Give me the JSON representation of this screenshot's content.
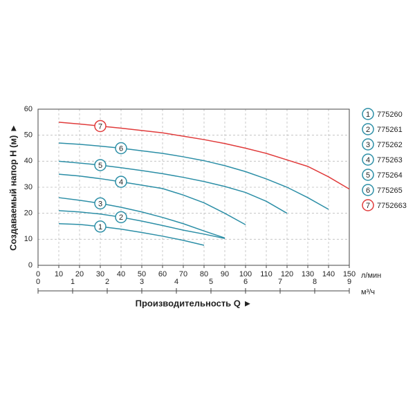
{
  "chart_data": {
    "type": "line",
    "y_label": "Создаваемый напор H (м) ►",
    "x_label": "Производительность Q ►",
    "x_unit": "л/мин",
    "x2_unit": "м³/ч",
    "xlim": [
      0,
      150
    ],
    "xticks": [
      0,
      10,
      20,
      30,
      40,
      50,
      60,
      70,
      80,
      90,
      100,
      110,
      120,
      130,
      140,
      150
    ],
    "x2lim": [
      0,
      9
    ],
    "x2ticks": [
      0,
      1,
      2,
      3,
      4,
      5,
      6,
      7,
      8,
      9
    ],
    "ylim": [
      0,
      60
    ],
    "yticks": [
      0,
      10,
      20,
      30,
      40,
      50,
      60
    ],
    "grid": true,
    "series": [
      {
        "name": "775260",
        "label": "1",
        "color": "#2b8ea6",
        "x": [
          10,
          20,
          30,
          40,
          50,
          60,
          70,
          80
        ],
        "values": [
          16,
          15.7,
          14.9,
          13.9,
          12.6,
          11.2,
          9.6,
          7.7
        ]
      },
      {
        "name": "775261",
        "label": "2",
        "color": "#2b8ea6",
        "x": [
          10,
          20,
          30,
          40,
          50,
          60,
          70,
          80,
          90
        ],
        "values": [
          21,
          20.5,
          19.7,
          18.5,
          17,
          15.3,
          13.5,
          12,
          10.3
        ]
      },
      {
        "name": "775262",
        "label": "3",
        "color": "#2b8ea6",
        "x": [
          10,
          20,
          30,
          40,
          50,
          60,
          70,
          80,
          90
        ],
        "values": [
          26,
          25,
          23.8,
          22.3,
          20.5,
          18.4,
          16,
          13.2,
          10.5
        ]
      },
      {
        "name": "775263",
        "label": "4",
        "color": "#2b8ea6",
        "x": [
          10,
          20,
          30,
          40,
          50,
          60,
          70,
          80,
          90,
          100
        ],
        "values": [
          35,
          34.3,
          33.3,
          32.1,
          30.8,
          29.5,
          27,
          24,
          20,
          15.6
        ]
      },
      {
        "name": "775264",
        "label": "5",
        "color": "#2b8ea6",
        "x": [
          10,
          20,
          30,
          40,
          50,
          60,
          70,
          80,
          90,
          100,
          110,
          120
        ],
        "values": [
          40,
          39.3,
          38.5,
          37.5,
          36.4,
          35.2,
          33.8,
          32.2,
          30.3,
          28,
          24.6,
          20
        ]
      },
      {
        "name": "775265",
        "label": "6",
        "color": "#2b8ea6",
        "x": [
          10,
          20,
          30,
          40,
          50,
          60,
          70,
          80,
          90,
          100,
          110,
          120,
          130,
          140
        ],
        "values": [
          47,
          46.5,
          45.8,
          45,
          44,
          43,
          41.7,
          40.2,
          38.3,
          36,
          33.2,
          30,
          26,
          21.5
        ]
      },
      {
        "name": "7752663",
        "label": "7",
        "color": "#e03a3a",
        "x": [
          10,
          20,
          30,
          40,
          50,
          60,
          70,
          80,
          90,
          100,
          110,
          120,
          130,
          140,
          150
        ],
        "values": [
          55,
          54.3,
          53.5,
          52.7,
          51.8,
          50.9,
          49.6,
          48.3,
          46.8,
          45,
          43,
          40.5,
          38,
          34,
          29.3
        ]
      }
    ]
  }
}
